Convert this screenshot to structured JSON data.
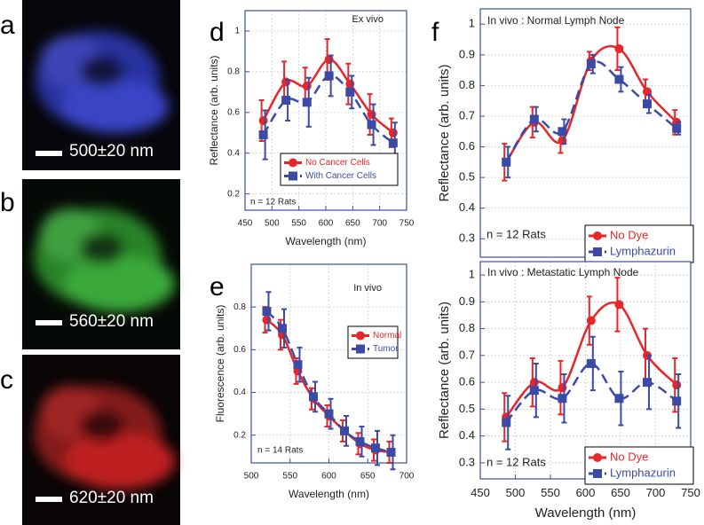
{
  "images": [
    {
      "label": "a",
      "caption": "500±20 nm"
    },
    {
      "label": "b",
      "caption": "560±20 nm"
    },
    {
      "label": "c",
      "caption": "620±20 nm"
    }
  ],
  "chart_data": [
    {
      "type": "line",
      "panel": "d",
      "title": "Ex vivo",
      "note": "n = 12 Rats",
      "xlabel": "Wavelength (nm)",
      "ylabel": "Reflectance (arb. units)",
      "x": [
        484,
        526,
        565,
        606,
        645,
        685,
        725
      ],
      "series": [
        {
          "name": "No Cancer Cells",
          "color": "#e8262a",
          "marker": "circle",
          "linestyle": "solid",
          "values": [
            0.56,
            0.75,
            0.73,
            0.86,
            0.74,
            0.59,
            0.5
          ],
          "errors": [
            0.1,
            0.1,
            0.09,
            0.1,
            0.1,
            0.1,
            0.07
          ]
        },
        {
          "name": "With Cancer Cells",
          "color": "#3b4ba5",
          "marker": "square",
          "linestyle": "dashed",
          "values": [
            0.49,
            0.66,
            0.65,
            0.78,
            0.7,
            0.54,
            0.45
          ],
          "errors": [
            0.12,
            0.1,
            0.12,
            0.1,
            0.08,
            0.1,
            0.1
          ]
        }
      ],
      "xlim": [
        450,
        750
      ],
      "xticks": [
        450,
        500,
        550,
        600,
        650,
        700,
        750
      ],
      "ylim": [
        0.12,
        1.1
      ],
      "yticks": [
        0.2,
        0.4,
        0.6,
        0.8,
        1
      ],
      "grid": true,
      "legend": "lower right"
    },
    {
      "type": "line",
      "panel": "e",
      "title": "In vivo",
      "note": "n = 14 Rats",
      "xlabel": "Wavelength (nm)",
      "ylabel": "Fluorescence (arb. units)",
      "x": [
        520,
        540,
        560,
        580,
        600,
        620,
        640,
        660,
        680
      ],
      "series": [
        {
          "name": "Normal",
          "color": "#e8262a",
          "marker": "circle",
          "linestyle": "solid",
          "values": [
            0.74,
            0.67,
            0.5,
            0.37,
            0.29,
            0.22,
            0.16,
            0.13,
            0.12
          ],
          "errors": [
            0.06,
            0.07,
            0.06,
            0.05,
            0.05,
            0.05,
            0.05,
            0.05,
            0.05
          ]
        },
        {
          "name": "Tumor",
          "color": "#3b4ba5",
          "marker": "square",
          "linestyle": "dashed",
          "values": [
            0.78,
            0.7,
            0.53,
            0.38,
            0.3,
            0.22,
            0.17,
            0.14,
            0.12
          ],
          "errors": [
            0.09,
            0.09,
            0.08,
            0.07,
            0.07,
            0.07,
            0.07,
            0.08,
            0.08
          ]
        }
      ],
      "xlim": [
        500,
        700
      ],
      "xticks": [
        500,
        550,
        600,
        650,
        700
      ],
      "ylim": [
        0.07,
        1.0
      ],
      "yticks": [
        0.2,
        0.4,
        0.6,
        0.8
      ],
      "grid": true,
      "legend": "upper right"
    },
    {
      "type": "line",
      "panel": "f",
      "title": "In vivo : Normal Lymph Node",
      "note": "n = 12 Rats",
      "ylabel": "Reflectance (arb. units)",
      "x": [
        487,
        527,
        567,
        608,
        648,
        688,
        730
      ],
      "series": [
        {
          "name": "No Dye",
          "color": "#e8262a",
          "marker": "circle",
          "linestyle": "solid",
          "values": [
            0.55,
            0.68,
            0.62,
            0.88,
            0.92,
            0.78,
            0.68
          ],
          "errors": [
            0.06,
            0.05,
            0.04,
            0.03,
            0.07,
            0.04,
            0.04
          ]
        },
        {
          "name": "Lymphazurin",
          "color": "#3b4ba5",
          "marker": "square",
          "linestyle": "dashed",
          "values": [
            0.55,
            0.69,
            0.65,
            0.87,
            0.82,
            0.74,
            0.66
          ],
          "errors": [
            0.05,
            0.04,
            0.04,
            0.03,
            0.04,
            0.03,
            0.02
          ]
        }
      ],
      "xlim": [
        450,
        750
      ],
      "ylim": [
        0.24,
        1.05
      ],
      "yticks": [
        0.3,
        0.4,
        0.5,
        0.6,
        0.7,
        0.8,
        0.9,
        1
      ],
      "grid": true,
      "legend": "lower right"
    },
    {
      "type": "line",
      "title": "In vivo : Metastatic Lymph Node",
      "note": "n = 12 Rats",
      "xlabel": "Wavelength (nm)",
      "ylabel": "Reflectance (arb. units)",
      "x": [
        487,
        527,
        567,
        608,
        648,
        688,
        730
      ],
      "series": [
        {
          "name": "No Dye",
          "color": "#e8262a",
          "marker": "circle",
          "linestyle": "solid",
          "values": [
            0.47,
            0.6,
            0.58,
            0.83,
            0.89,
            0.7,
            0.59
          ],
          "errors": [
            0.09,
            0.09,
            0.1,
            0.09,
            0.1,
            0.1,
            0.1
          ]
        },
        {
          "name": "Lymphazurin",
          "color": "#3b4ba5",
          "marker": "square",
          "linestyle": "dashed",
          "values": [
            0.45,
            0.57,
            0.54,
            0.67,
            0.54,
            0.6,
            0.53
          ],
          "errors": [
            0.1,
            0.1,
            0.09,
            0.1,
            0.1,
            0.1,
            0.1
          ]
        }
      ],
      "xlim": [
        450,
        750
      ],
      "xticks": [
        450,
        500,
        550,
        600,
        650,
        700,
        750
      ],
      "ylim": [
        0.24,
        1.05
      ],
      "yticks": [
        0.3,
        0.4,
        0.5,
        0.6,
        0.7,
        0.8,
        0.9,
        1
      ],
      "grid": true,
      "legend": "lower right"
    }
  ]
}
